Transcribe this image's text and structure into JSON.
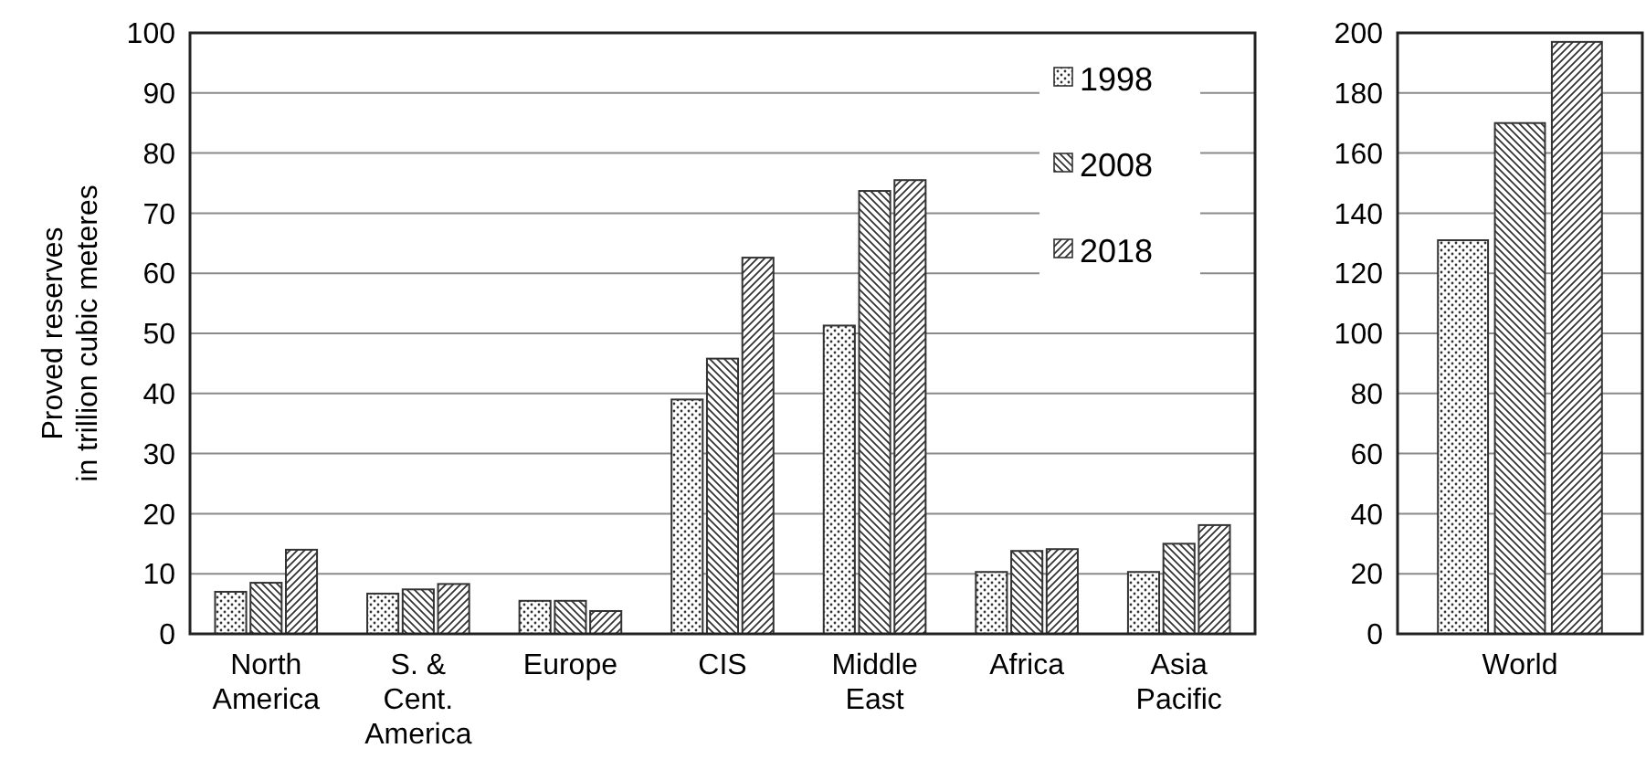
{
  "chart_data": [
    {
      "type": "bar",
      "ylabel": "Proved reserves in trillion cubic meteres",
      "categories": [
        "North America",
        "S. & Cent. America",
        "Europe",
        "CIS",
        "Middle East",
        "Africa",
        "Asia Pacific"
      ],
      "series": [
        {
          "name": "1998",
          "color": "#333333",
          "values": [
            7,
            6.7,
            5.5,
            39,
            51.3,
            10.3,
            10.3
          ]
        },
        {
          "name": "2008",
          "color": "#333333",
          "values": [
            8.5,
            7.4,
            5.5,
            45.8,
            73.7,
            13.8,
            15
          ]
        },
        {
          "name": "2018",
          "color": "#333333",
          "values": [
            14,
            8.3,
            3.8,
            62.6,
            75.5,
            14.1,
            18.1
          ]
        }
      ],
      "ylim": [
        0,
        100
      ],
      "yticks": [
        0,
        10,
        20,
        30,
        40,
        50,
        60,
        70,
        80,
        90,
        100
      ],
      "grid": "y",
      "legend": "top right"
    },
    {
      "type": "bar",
      "categories": [
        "World"
      ],
      "series": [
        {
          "color": "#333333",
          "values": [
            131
          ]
        },
        {
          "color": "#333333",
          "values": [
            170
          ]
        },
        {
          "color": "#333333",
          "values": [
            197
          ]
        }
      ],
      "ylim": [
        0,
        200
      ],
      "yticks": [
        0,
        20,
        40,
        60,
        80,
        100,
        120,
        140,
        160,
        180,
        200
      ],
      "grid": "y"
    }
  ]
}
